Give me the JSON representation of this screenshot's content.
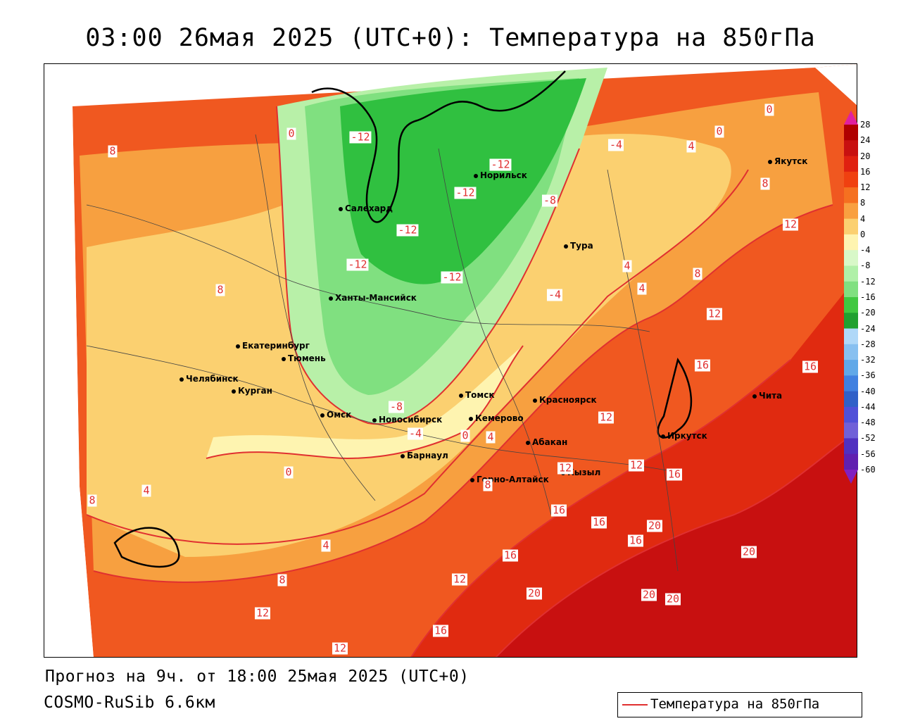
{
  "header": {
    "title": "03:00 26мая 2025 (UTC+0): Температура на 850гПа"
  },
  "footer": {
    "forecast": "Прогноз на 9ч. от 18:00 25мая 2025 (UTC+0)",
    "model": "COSMO-RuSib 6.6км"
  },
  "legend": {
    "label": "Температура на 850гПа",
    "line_color": "#e03030"
  },
  "cities": [
    {
      "name": "Салехард",
      "id": "salekhard"
    },
    {
      "name": "Норильск",
      "id": "norilsk"
    },
    {
      "name": "Тура",
      "id": "tura"
    },
    {
      "name": "Якутск",
      "id": "yakutsk"
    },
    {
      "name": "Ханты-Мансийск",
      "id": "khanty-mansiysk"
    },
    {
      "name": "Екатеринбург",
      "id": "ekaterinburg"
    },
    {
      "name": "Тюмень",
      "id": "tyumen"
    },
    {
      "name": "Челябинск",
      "id": "chelyabinsk"
    },
    {
      "name": "Курган",
      "id": "kurgan"
    },
    {
      "name": "Омск",
      "id": "omsk"
    },
    {
      "name": "Новосибирск",
      "id": "novosibirsk"
    },
    {
      "name": "Томск",
      "id": "tomsk"
    },
    {
      "name": "Кемерово",
      "id": "kemerovo"
    },
    {
      "name": "Красноярск",
      "id": "krasnoyarsk"
    },
    {
      "name": "Барнаул",
      "id": "barnaul"
    },
    {
      "name": "Абакан",
      "id": "abakan"
    },
    {
      "name": "Горно-Алтайск",
      "id": "gorno-altaysk"
    },
    {
      "name": "Кызыл",
      "id": "kyzyl"
    },
    {
      "name": "Иркутск",
      "id": "irkutsk"
    },
    {
      "name": "Чита",
      "id": "chita"
    }
  ],
  "contour_labels": [
    "0",
    "-12",
    "-12",
    "-12",
    "-8",
    "-12",
    "-12",
    "-12",
    "-4",
    "-4",
    "0",
    "0",
    "4",
    "8",
    "8",
    "12",
    "4",
    "8",
    "12",
    "16",
    "16",
    "-8",
    "-4",
    "0",
    "4",
    "4",
    "0",
    "4",
    "8",
    "4",
    "8",
    "12",
    "12",
    "16",
    "16",
    "16",
    "20",
    "20",
    "20",
    "20",
    "16",
    "12",
    "12",
    "16",
    "20",
    "12",
    "16",
    "12",
    "8",
    "8"
  ],
  "colorbar": {
    "ticks": [
      "28",
      "24",
      "20",
      "16",
      "12",
      "8",
      "4",
      "0",
      "-4",
      "-8",
      "-12",
      "-16",
      "-20",
      "-24",
      "-28",
      "-32",
      "-36",
      "-40",
      "-44",
      "-48",
      "-52",
      "-56",
      "-60"
    ],
    "colors": [
      "#b00000",
      "#c81010",
      "#e02010",
      "#f04010",
      "#f57020",
      "#f9a040",
      "#fbd070",
      "#fef4b0",
      "#d8f8c8",
      "#b0f0a8",
      "#80e080",
      "#40c840",
      "#20a030",
      "#b0d8f8",
      "#88c0f0",
      "#60a8e8",
      "#4080e0",
      "#3060c8",
      "#5050d8",
      "#7060d8",
      "#5030c0",
      "#6020b0"
    ]
  }
}
